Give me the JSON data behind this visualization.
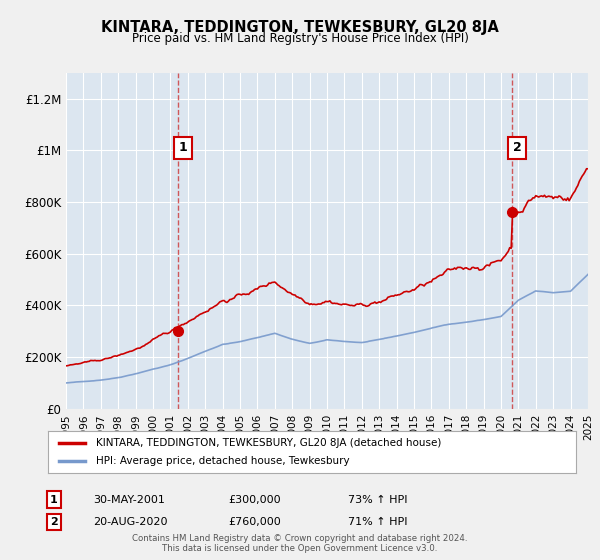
{
  "title": "KINTARA, TEDDINGTON, TEWKESBURY, GL20 8JA",
  "subtitle": "Price paid vs. HM Land Registry's House Price Index (HPI)",
  "legend_line1": "KINTARA, TEDDINGTON, TEWKESBURY, GL20 8JA (detached house)",
  "legend_line2": "HPI: Average price, detached house, Tewkesbury",
  "annotation1_label": "1",
  "annotation1_date": "30-MAY-2001",
  "annotation1_price": "£300,000",
  "annotation1_hpi": "73% ↑ HPI",
  "annotation2_label": "2",
  "annotation2_date": "20-AUG-2020",
  "annotation2_price": "£760,000",
  "annotation2_hpi": "71% ↑ HPI",
  "footer": "Contains HM Land Registry data © Crown copyright and database right 2024.\nThis data is licensed under the Open Government Licence v3.0.",
  "red_color": "#cc0000",
  "blue_color": "#7799cc",
  "dashed_color": "#cc3333",
  "background_color": "#f0f0f0",
  "plot_bg_color": "#dce6f0",
  "grid_color": "#ffffff",
  "ylim": [
    0,
    1300000
  ],
  "yticks": [
    0,
    200000,
    400000,
    600000,
    800000,
    1000000,
    1200000
  ],
  "ytick_labels": [
    "£0",
    "£200K",
    "£400K",
    "£600K",
    "£800K",
    "£1M",
    "£1.2M"
  ],
  "sale1_year": 2001.42,
  "sale1_price": 300000,
  "sale2_year": 2020.63,
  "sale2_price": 760000
}
